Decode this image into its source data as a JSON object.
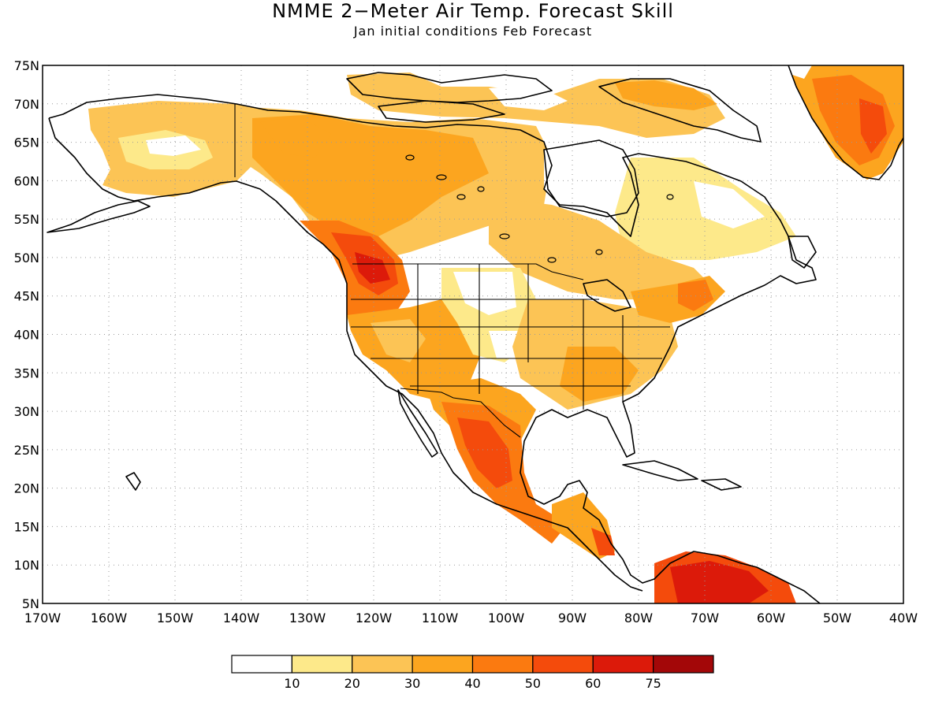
{
  "title": "NMME 2−Meter Air Temp. Forecast Skill",
  "subtitle": "Jan initial conditions  Feb Forecast",
  "axes": {
    "lat_labels": [
      "75N",
      "70N",
      "65N",
      "60N",
      "55N",
      "50N",
      "45N",
      "40N",
      "35N",
      "30N",
      "25N",
      "20N",
      "15N",
      "10N",
      "5N"
    ],
    "lon_labels": [
      "170W",
      "160W",
      "150W",
      "140W",
      "130W",
      "120W",
      "110W",
      "100W",
      "90W",
      "80W",
      "70W",
      "60W",
      "50W",
      "40W"
    ],
    "lat_range": [
      5,
      75
    ],
    "lon_range": [
      -170,
      -40
    ]
  },
  "colorbar": {
    "labels": [
      "10",
      "20",
      "30",
      "40",
      "50",
      "60",
      "75"
    ],
    "colors": [
      "#ffffff",
      "#fde98a",
      "#fcc455",
      "#fca51f",
      "#fb7a10",
      "#f44b0c",
      "#dc1a0a",
      "#a30708"
    ]
  },
  "skill_regions": {
    "levels": [
      {
        "range": "10-20",
        "color": "#fde98a"
      },
      {
        "range": "20-30",
        "color": "#fcc455"
      },
      {
        "range": "30-40",
        "color": "#fca51f"
      },
      {
        "range": "40-50",
        "color": "#fb7a10"
      },
      {
        "range": "50-60",
        "color": "#f44b0c"
      },
      {
        "range": "60-75",
        "color": "#dc1a0a"
      },
      {
        "range": ">75",
        "color": "#a30708"
      }
    ]
  }
}
